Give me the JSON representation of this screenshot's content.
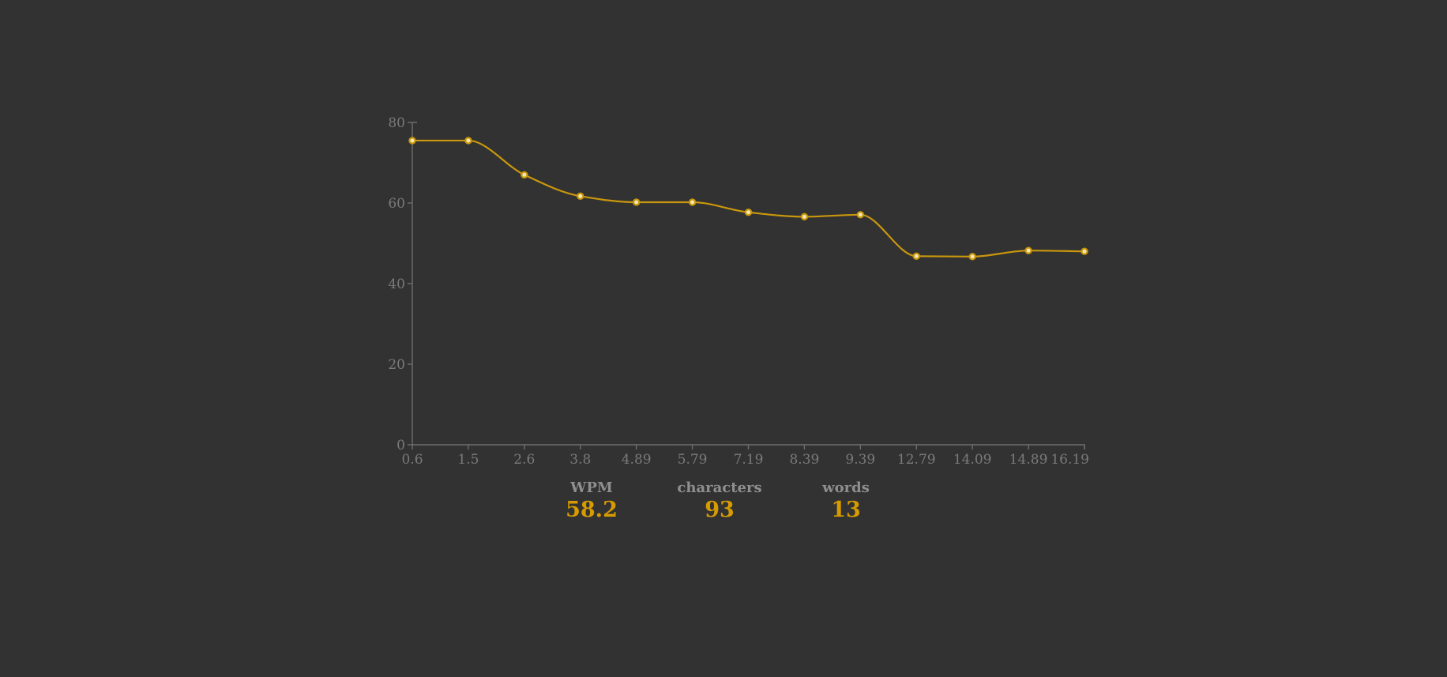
{
  "chart_data": {
    "type": "line",
    "x": [
      "0.6",
      "1.5",
      "2.6",
      "3.8",
      "4.89",
      "5.79",
      "7.19",
      "8.39",
      "9.39",
      "12.79",
      "14.09",
      "14.89",
      "16.19"
    ],
    "values": [
      75.5,
      75.5,
      67,
      61.7,
      60.2,
      60.2,
      57.7,
      56.6,
      57.1,
      46.8,
      46.7,
      48.2,
      48
    ],
    "y_ticks": [
      "0",
      "20",
      "40",
      "60",
      "80"
    ],
    "ylim": [
      0,
      80
    ],
    "grid": false,
    "legend": "none",
    "colors": {
      "line": "#c9970c",
      "point_fill": "#f4e7b8",
      "axis": "#6e6e6e",
      "tick_text": "#7a7a7a"
    }
  },
  "stats": {
    "wpm": {
      "label": "WPM",
      "value": "58.2"
    },
    "characters": {
      "label": "characters",
      "value": "93"
    },
    "words": {
      "label": "words",
      "value": "13"
    }
  }
}
